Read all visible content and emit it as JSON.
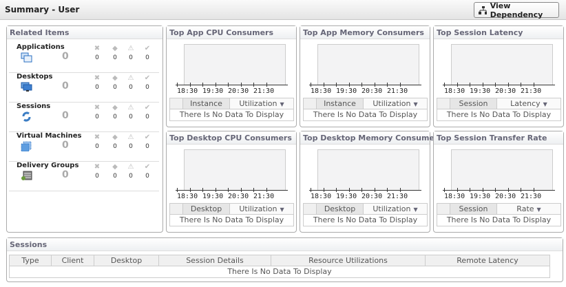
{
  "header": {
    "title": "Summary - User",
    "view_dependency": "View Dependency"
  },
  "related": {
    "title": "Related Items",
    "items": [
      {
        "label": "Applications",
        "count": "0",
        "icon": "applications-icon",
        "statuses": [
          "0",
          "0",
          "0",
          "0"
        ]
      },
      {
        "label": "Desktops",
        "count": "0",
        "icon": "desktops-icon",
        "statuses": [
          "0",
          "0",
          "0",
          "0"
        ]
      },
      {
        "label": "Sessions",
        "count": "0",
        "icon": "sessions-icon",
        "statuses": [
          "0",
          "0",
          "0",
          "0"
        ]
      },
      {
        "label": "Virtual Machines",
        "count": "0",
        "icon": "virtual-machines-icon",
        "statuses": [
          "0",
          "0",
          "0",
          "0"
        ]
      },
      {
        "label": "Delivery Groups",
        "count": "0",
        "icon": "delivery-groups-icon",
        "statuses": [
          "0",
          "0",
          "0",
          "0"
        ]
      }
    ],
    "status_icons": [
      "critical-icon",
      "major-icon",
      "warning-icon",
      "normal-icon"
    ]
  },
  "charts": [
    {
      "title": "Top App CPU Consumers",
      "col1": "Instance",
      "col2": "Utilization",
      "empty": "There Is No Data To Display"
    },
    {
      "title": "Top App Memory Consumers",
      "col1": "Instance",
      "col2": "Utilization",
      "empty": "There Is No Data To Display"
    },
    {
      "title": "Top Session Latency",
      "col1": "Session",
      "col2": "Latency",
      "empty": "There Is No Data To Display"
    },
    {
      "title": "Top Desktop CPU Consumers",
      "col1": "Desktop",
      "col2": "Utilization",
      "empty": "There Is No Data To Display"
    },
    {
      "title": "Top Desktop Memory Consumers",
      "col1": "Desktop",
      "col2": "Utilization",
      "empty": "There Is No Data To Display"
    },
    {
      "title": "Top Session Transfer Rate",
      "col1": "Session",
      "col2": "Rate",
      "empty": "There Is No Data To Display"
    }
  ],
  "time_ticks": [
    "18:30",
    "19:30",
    "20:30",
    "21:30"
  ],
  "sessions": {
    "title": "Sessions",
    "columns": [
      "Type",
      "Client",
      "Desktop",
      "Session Details",
      "Resource Utilizations",
      "Remote Latency"
    ],
    "empty": "There Is No Data To Display"
  },
  "chart_data": []
}
